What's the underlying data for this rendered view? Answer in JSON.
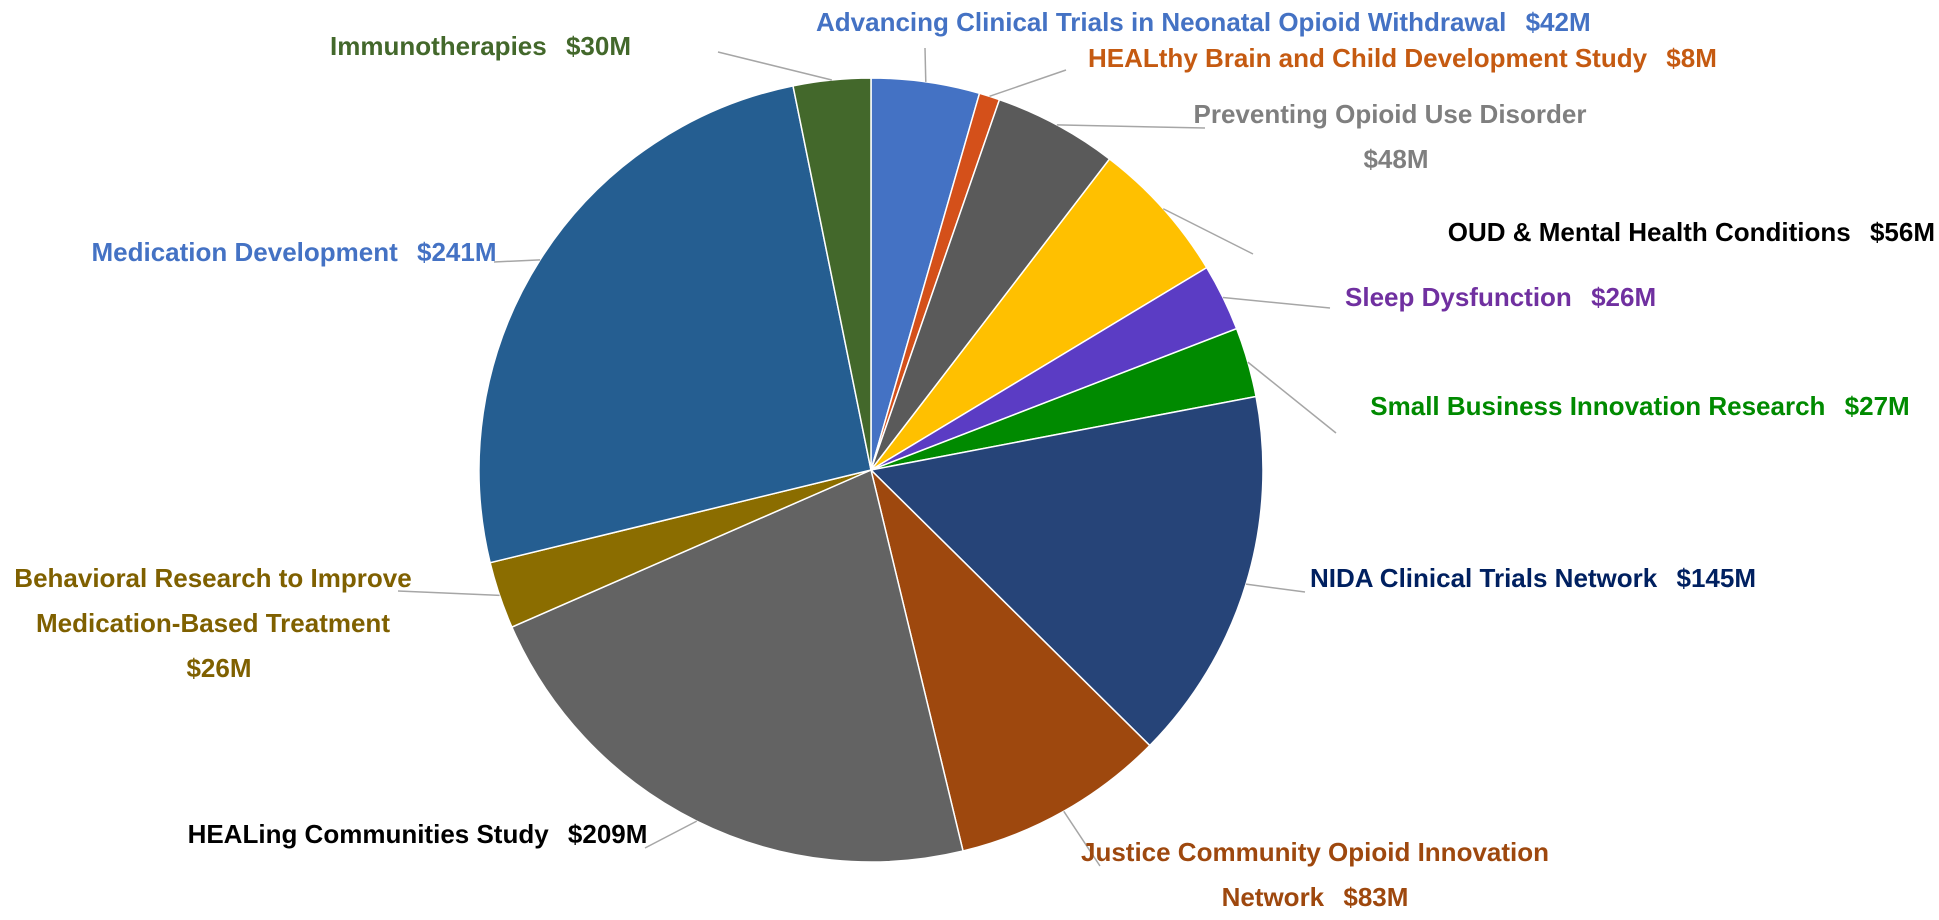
{
  "chart_data": {
    "type": "pie",
    "categories": [
      "Advancing Clinical Trials in Neonatal Opioid Withdrawal",
      "HEALthy Brain and Child Development Study",
      "Preventing Opioid Use Disorder",
      "OUD & Mental Health Conditions",
      "Sleep Dysfunction",
      "Small Business Innovation Research",
      "NIDA Clinical Trials Network",
      "Justice Community Opioid Innovation Network",
      "HEALing Communities Study",
      "Behavioral Research to Improve Medication-Based Treatment",
      "Medication Development",
      "Immunotherapies"
    ],
    "values": [
      42,
      8,
      48,
      56,
      26,
      27,
      145,
      83,
      209,
      26,
      241,
      30
    ],
    "value_labels": [
      "$42M",
      "$8M",
      "$48M",
      "$56M",
      "$26M",
      "$27M",
      "$145M",
      "$83M",
      "$209M",
      "$26M",
      "$241M",
      "$30M"
    ],
    "colors": [
      "#4472c4",
      "#d4501a",
      "#5a5a5a",
      "#ffc000",
      "#5b3cc4",
      "#008a00",
      "#264478",
      "#9e480e",
      "#636363",
      "#8b6d00",
      "#255e91",
      "#43682b"
    ],
    "label_colors": [
      "#4472c4",
      "#c55a11",
      "#7f7f7f",
      "#000000",
      "#7030a0",
      "#008a00",
      "#002060",
      "#9e480e",
      "#000000",
      "#7f6000",
      "#4472c4",
      "#43682b"
    ]
  }
}
